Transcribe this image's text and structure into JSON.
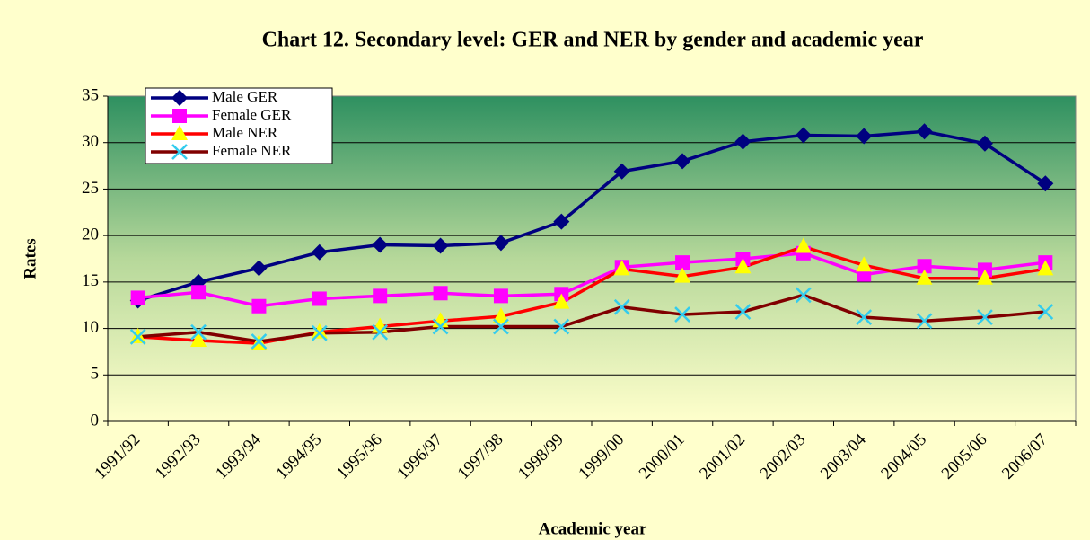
{
  "chart_data": {
    "type": "line",
    "title": "Chart 12. Secondary level: GER and NER by gender and academic year",
    "y_label": "Rates",
    "x_label": "Academic year",
    "categories": [
      "1991/92",
      "1992/93",
      "1993/94",
      "1994/95",
      "1995/96",
      "1996/97",
      "1997/98",
      "1998/99",
      "1999/00",
      "2000/01",
      "2001/02",
      "2002/03",
      "2003/04",
      "2004/05",
      "2005/06",
      "2006/07"
    ],
    "ylim": [
      0,
      35
    ],
    "yticks": [
      0,
      5,
      10,
      15,
      20,
      25,
      30,
      35
    ],
    "grid": true,
    "legend": "top-left",
    "series": [
      {
        "name": "Male GER",
        "color": "#000080",
        "marker": "diamond",
        "marker_color": "#000080",
        "values": [
          13.0,
          15.0,
          16.5,
          18.2,
          19.0,
          18.9,
          19.2,
          21.5,
          26.9,
          28.0,
          30.1,
          30.8,
          30.7,
          31.2,
          29.9,
          25.6
        ]
      },
      {
        "name": "Female GER",
        "color": "#ff00ff",
        "marker": "square",
        "marker_color": "#ff00ff",
        "values": [
          13.3,
          13.9,
          12.4,
          13.2,
          13.5,
          13.8,
          13.5,
          13.7,
          16.6,
          17.1,
          17.5,
          18.1,
          15.8,
          16.7,
          16.3,
          17.1
        ]
      },
      {
        "name": "Male NER",
        "color": "#ff0000",
        "marker": "triangle",
        "marker_color": "#ffff00",
        "values": [
          9.1,
          8.7,
          8.4,
          9.6,
          10.2,
          10.8,
          11.3,
          12.8,
          16.4,
          15.6,
          16.6,
          18.8,
          16.8,
          15.4,
          15.4,
          16.4
        ]
      },
      {
        "name": "Female NER",
        "color": "#800000",
        "marker": "x",
        "marker_color": "#33ccee",
        "values": [
          9.1,
          9.6,
          8.6,
          9.5,
          9.6,
          10.2,
          10.2,
          10.2,
          12.3,
          11.5,
          11.8,
          13.6,
          11.2,
          10.8,
          11.2,
          11.8
        ]
      }
    ]
  }
}
